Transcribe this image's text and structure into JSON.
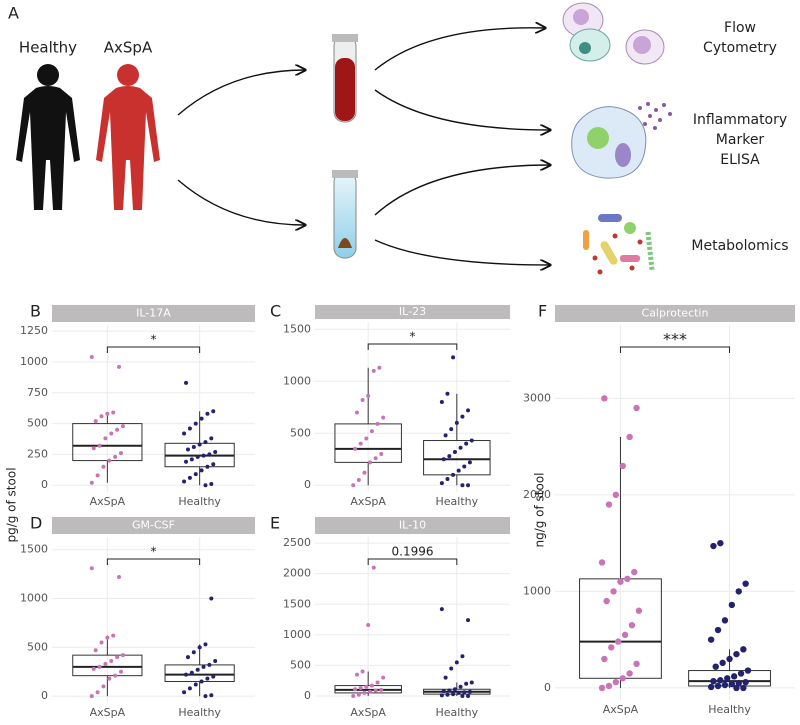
{
  "panel_a": {
    "label": "A",
    "groups": [
      "Healthy",
      "AxSpA"
    ],
    "outputs": [
      [
        "Flow",
        "Cytometry"
      ],
      [
        "Inflammatory",
        "Marker",
        "ELISA"
      ],
      [
        "Metabolomics"
      ]
    ]
  },
  "shared_y_label": "pg/g of stool",
  "chart_data": [
    {
      "type": "box",
      "panel": "B",
      "title": "IL-17A",
      "categories": [
        "AxSpA",
        "Healthy"
      ],
      "colors": [
        "#c874b6",
        "#23226e"
      ],
      "ylim": [
        -55,
        1300
      ],
      "yticks": [
        0,
        250,
        500,
        750,
        1000,
        1250
      ],
      "grid": true,
      "significance": "*",
      "boxes": [
        {
          "whislo": 20,
          "q1": 200,
          "med": 320,
          "q3": 500,
          "whishi": 590
        },
        {
          "whislo": 0,
          "q1": 150,
          "med": 240,
          "q3": 340,
          "whishi": 600
        }
      ],
      "points": [
        [
          20,
          80,
          150,
          200,
          230,
          260,
          300,
          320,
          380,
          420,
          450,
          480,
          520,
          560,
          580,
          590,
          960,
          1040
        ],
        [
          0,
          10,
          30,
          60,
          90,
          120,
          150,
          170,
          190,
          210,
          230,
          240,
          250,
          270,
          290,
          310,
          330,
          350,
          380,
          420,
          460,
          500,
          540,
          580,
          600,
          830
        ]
      ]
    },
    {
      "type": "box",
      "panel": "C",
      "title": "IL-23",
      "categories": [
        "AxSpA",
        "Healthy"
      ],
      "colors": [
        "#c874b6",
        "#23226e"
      ],
      "ylim": [
        -65,
        1570
      ],
      "yticks": [
        0,
        500,
        1000,
        1500
      ],
      "grid": true,
      "significance": "*",
      "boxes": [
        {
          "whislo": 0,
          "q1": 220,
          "med": 350,
          "q3": 590,
          "whishi": 1130
        },
        {
          "whislo": 0,
          "q1": 100,
          "med": 250,
          "q3": 430,
          "whishi": 880
        }
      ],
      "points": [
        [
          0,
          50,
          120,
          220,
          260,
          300,
          350,
          400,
          450,
          520,
          590,
          650,
          700,
          820,
          860,
          1100,
          1130
        ],
        [
          0,
          0,
          20,
          60,
          100,
          140,
          180,
          220,
          250,
          280,
          320,
          360,
          400,
          430,
          480,
          540,
          600,
          660,
          720,
          800,
          880,
          1230
        ]
      ]
    },
    {
      "type": "box",
      "panel": "D",
      "title": "GM-CSF",
      "categories": [
        "AxSpA",
        "Healthy"
      ],
      "colors": [
        "#c874b6",
        "#23226e"
      ],
      "ylim": [
        -70,
        1630
      ],
      "yticks": [
        0,
        500,
        1000,
        1500
      ],
      "grid": true,
      "significance": "*",
      "boxes": [
        {
          "whislo": 0,
          "q1": 210,
          "med": 300,
          "q3": 420,
          "whishi": 620
        },
        {
          "whislo": 0,
          "q1": 150,
          "med": 220,
          "q3": 320,
          "whishi": 530
        }
      ],
      "points": [
        [
          0,
          40,
          100,
          180,
          210,
          250,
          280,
          300,
          330,
          360,
          400,
          420,
          470,
          550,
          600,
          620,
          1220,
          1310
        ],
        [
          0,
          10,
          40,
          80,
          120,
          150,
          180,
          200,
          220,
          240,
          270,
          300,
          320,
          360,
          400,
          450,
          500,
          530,
          1000
        ]
      ]
    },
    {
      "type": "box",
      "panel": "E",
      "title": "IL-10",
      "categories": [
        "AxSpA",
        "Healthy"
      ],
      "colors": [
        "#c874b6",
        "#23226e"
      ],
      "ylim": [
        -115,
        2600
      ],
      "yticks": [
        0,
        500,
        1000,
        1500,
        2000,
        2500
      ],
      "grid": true,
      "significance": "0.1996",
      "boxes": [
        {
          "whislo": 0,
          "q1": 50,
          "med": 100,
          "q3": 170,
          "whishi": 400
        },
        {
          "whislo": 0,
          "q1": 30,
          "med": 70,
          "q3": 110,
          "whishi": 220
        }
      ],
      "points": [
        [
          0,
          20,
          50,
          70,
          90,
          100,
          110,
          130,
          150,
          170,
          220,
          300,
          350,
          400,
          1160,
          2100
        ],
        [
          0,
          0,
          10,
          20,
          30,
          50,
          60,
          70,
          80,
          90,
          110,
          150,
          200,
          220,
          300,
          450,
          550,
          650,
          1240,
          1420
        ]
      ]
    },
    {
      "type": "box",
      "panel": "F",
      "title": "Calprotectin",
      "y_label": "ng/g of stool",
      "categories": [
        "AxSpA",
        "Healthy"
      ],
      "colors": [
        "#c874b6",
        "#23226e"
      ],
      "ylim": [
        -125,
        3760
      ],
      "yticks": [
        0,
        1000,
        2000,
        3000
      ],
      "grid": true,
      "significance": "***",
      "boxes": [
        {
          "whislo": 0,
          "q1": 100,
          "med": 480,
          "q3": 1130,
          "whishi": 2600
        },
        {
          "whislo": 0,
          "q1": 20,
          "med": 70,
          "q3": 180,
          "whishi": 400
        }
      ],
      "points": [
        [
          0,
          20,
          60,
          100,
          150,
          250,
          300,
          420,
          480,
          550,
          650,
          800,
          900,
          1000,
          1100,
          1130,
          1200,
          1300,
          1900,
          2000,
          2300,
          2600,
          2900,
          3000
        ],
        [
          0,
          0,
          10,
          20,
          30,
          40,
          50,
          60,
          70,
          80,
          100,
          120,
          150,
          180,
          220,
          260,
          300,
          350,
          400,
          500,
          600,
          700,
          860,
          1000,
          1080,
          1470,
          1500
        ]
      ]
    }
  ]
}
